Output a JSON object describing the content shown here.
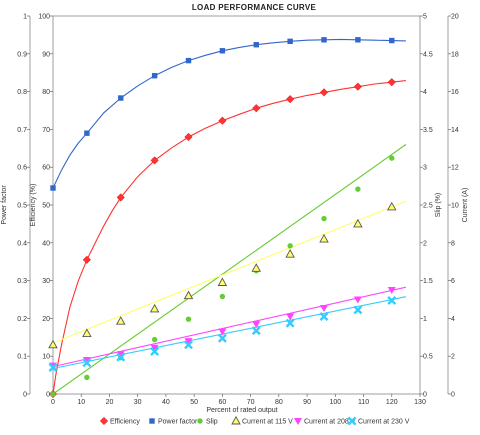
{
  "chart_data": {
    "type": "line",
    "title": "LOAD PERFORMANCE CURVE",
    "xlabel": "Percent of rated output",
    "xlim": [
      0,
      130
    ],
    "x_ticks": [
      0,
      10,
      20,
      30,
      40,
      50,
      60,
      70,
      80,
      90,
      100,
      110,
      120,
      130
    ],
    "axes": [
      {
        "id": "pf",
        "side": "left",
        "outer": true,
        "label": "Power factor",
        "lim": [
          0,
          1
        ],
        "ticks": [
          "0",
          "0.1",
          "0.2",
          "0.3",
          "0.4",
          "0.5",
          "0.6",
          "0.7",
          "0.8",
          "0.9",
          "1"
        ]
      },
      {
        "id": "eff",
        "side": "left",
        "outer": false,
        "label": "Efficiency (%)",
        "lim": [
          0,
          100
        ],
        "ticks": [
          "0",
          "10",
          "20",
          "30",
          "40",
          "50",
          "60",
          "70",
          "80",
          "90",
          "100"
        ]
      },
      {
        "id": "slip",
        "side": "right",
        "outer": false,
        "label": "Slip (%)",
        "lim": [
          0,
          5
        ],
        "ticks": [
          "0",
          "0.5",
          "1",
          "1.5",
          "2",
          "2.5",
          "3",
          "3.5",
          "4",
          "4.5",
          "5"
        ]
      },
      {
        "id": "cur",
        "side": "right",
        "outer": true,
        "label": "Current (A)",
        "lim": [
          0,
          20
        ],
        "ticks": [
          "0",
          "2",
          "4",
          "6",
          "8",
          "10",
          "12",
          "14",
          "16",
          "18",
          "20"
        ]
      }
    ],
    "grid": false,
    "legend_position": "bottom",
    "series": [
      {
        "name": "Efficiency",
        "axis": "eff",
        "color": "#ff3333",
        "marker": "diamond",
        "x": [
          0,
          12,
          24,
          36,
          48,
          60,
          72,
          84,
          96,
          108,
          120
        ],
        "y": [
          0,
          35.5,
          52,
          61.8,
          68,
          72.3,
          75.6,
          78,
          79.8,
          81.3,
          82.5
        ],
        "curve": [
          [
            0,
            0
          ],
          [
            1,
            5
          ],
          [
            3,
            13
          ],
          [
            6,
            23
          ],
          [
            9,
            30
          ],
          [
            12,
            35.5
          ],
          [
            15,
            40
          ],
          [
            18,
            44.5
          ],
          [
            21,
            48.5
          ],
          [
            24,
            52
          ],
          [
            30,
            57.5
          ],
          [
            36,
            61.8
          ],
          [
            42,
            65.1
          ],
          [
            48,
            68
          ],
          [
            54,
            70.3
          ],
          [
            60,
            72.3
          ],
          [
            66,
            74
          ],
          [
            72,
            75.6
          ],
          [
            78,
            76.9
          ],
          [
            84,
            78
          ],
          [
            90,
            79
          ],
          [
            96,
            79.8
          ],
          [
            102,
            80.6
          ],
          [
            108,
            81.3
          ],
          [
            114,
            82
          ],
          [
            120,
            82.5
          ],
          [
            125,
            82.9
          ]
        ]
      },
      {
        "name": "Power factor",
        "axis": "pf",
        "color": "#3366cc",
        "marker": "square",
        "x": [
          0,
          12,
          24,
          36,
          48,
          60,
          72,
          84,
          96,
          108,
          120
        ],
        "y": [
          0.545,
          0.69,
          0.783,
          0.842,
          0.882,
          0.908,
          0.924,
          0.933,
          0.937,
          0.937,
          0.935
        ],
        "curve": [
          [
            0,
            0.545
          ],
          [
            3,
            0.592
          ],
          [
            6,
            0.632
          ],
          [
            9,
            0.664
          ],
          [
            12,
            0.69
          ],
          [
            18,
            0.744
          ],
          [
            24,
            0.783
          ],
          [
            30,
            0.815
          ],
          [
            36,
            0.842
          ],
          [
            42,
            0.864
          ],
          [
            48,
            0.882
          ],
          [
            54,
            0.896
          ],
          [
            60,
            0.908
          ],
          [
            66,
            0.917
          ],
          [
            72,
            0.924
          ],
          [
            78,
            0.929
          ],
          [
            84,
            0.933
          ],
          [
            90,
            0.936
          ],
          [
            96,
            0.937
          ],
          [
            102,
            0.938
          ],
          [
            108,
            0.937
          ],
          [
            114,
            0.936
          ],
          [
            120,
            0.935
          ],
          [
            125,
            0.934
          ]
        ]
      },
      {
        "name": "Slip",
        "axis": "slip",
        "color": "#66cc33",
        "marker": "circle",
        "x": [
          0,
          12,
          24,
          36,
          48,
          60,
          72,
          84,
          96,
          108,
          120
        ],
        "y": [
          0,
          0.22,
          0.48,
          0.72,
          0.99,
          1.29,
          1.63,
          1.96,
          2.32,
          2.71,
          3.12
        ],
        "curve": [
          [
            0,
            0
          ],
          [
            125,
            3.3
          ]
        ]
      },
      {
        "name": "Current at 115 V",
        "axis": "cur",
        "color": "#ffff66",
        "marker": "triangle",
        "x": [
          0,
          12,
          24,
          36,
          48,
          60,
          72,
          84,
          96,
          108,
          120
        ],
        "y": [
          2.6,
          3.2,
          3.85,
          4.5,
          5.2,
          5.9,
          6.65,
          7.4,
          8.2,
          9.0,
          9.9
        ],
        "curve": [
          [
            0,
            2.7
          ],
          [
            125,
            10.2
          ]
        ]
      },
      {
        "name": "Current at 208 V",
        "axis": "cur",
        "color": "#ff44ff",
        "marker": "triangle-down",
        "x": [
          0,
          12,
          24,
          36,
          48,
          60,
          72,
          84,
          96,
          108,
          120
        ],
        "y": [
          1.5,
          1.8,
          2.1,
          2.45,
          2.8,
          3.3,
          3.7,
          4.1,
          4.55,
          5.0,
          5.5
        ],
        "curve": [
          [
            0,
            1.45
          ],
          [
            125,
            5.65
          ]
        ]
      },
      {
        "name": "Current at 230 V",
        "axis": "cur",
        "color": "#33ccff",
        "marker": "x",
        "x": [
          0,
          12,
          24,
          36,
          48,
          60,
          72,
          84,
          96,
          108,
          120
        ],
        "y": [
          1.4,
          1.65,
          1.95,
          2.25,
          2.6,
          2.95,
          3.35,
          3.75,
          4.1,
          4.45,
          4.95
        ],
        "curve": [
          [
            0,
            1.35
          ],
          [
            125,
            5.15
          ]
        ]
      }
    ]
  }
}
